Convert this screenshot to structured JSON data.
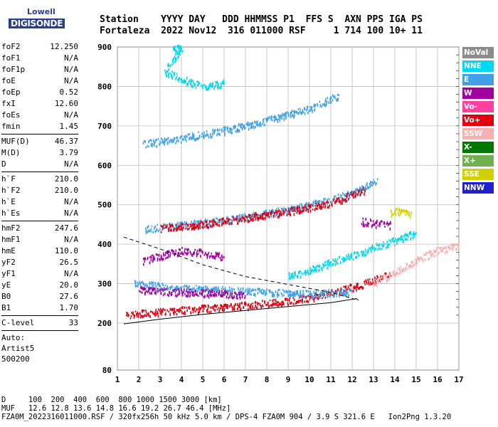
{
  "logo": {
    "line1": "Lowell",
    "line2": "DIGISONDE"
  },
  "header": {
    "labels": "Station    YYYY DAY   DDD HHMMSS P1  FFS S  AXN PPS IGA PS",
    "values": "Fortaleza  2022 Nov12  316 011000 RSF     1 714 100 10+ 11"
  },
  "params": [
    {
      "name": "foF2",
      "value": "12.250"
    },
    {
      "name": "foF1",
      "value": "N/A"
    },
    {
      "name": "foF1p",
      "value": "N/A"
    },
    {
      "name": "foE",
      "value": "N/A"
    },
    {
      "name": "foEp",
      "value": "0.52"
    },
    {
      "name": "fxI",
      "value": "12.60"
    },
    {
      "name": "foEs",
      "value": "N/A"
    },
    {
      "name": "fmin",
      "value": "1.45"
    },
    {
      "sep": true
    },
    {
      "name": "MUF(D)",
      "value": "46.37"
    },
    {
      "name": "M(D)",
      "value": "3.79"
    },
    {
      "name": "D",
      "value": "N/A"
    },
    {
      "sep": true
    },
    {
      "name": "h`F",
      "value": "210.0"
    },
    {
      "name": "h`F2",
      "value": "210.0"
    },
    {
      "name": "h`E",
      "value": "N/A"
    },
    {
      "name": "h`Es",
      "value": "N/A"
    },
    {
      "sep": true
    },
    {
      "name": "hmF2",
      "value": "247.6"
    },
    {
      "name": "hmF1",
      "value": "N/A"
    },
    {
      "name": "hmE",
      "value": "110.0"
    },
    {
      "name": "yF2",
      "value": "26.5"
    },
    {
      "name": "yF1",
      "value": "N/A"
    },
    {
      "name": "yE",
      "value": "20.0"
    },
    {
      "name": "B0",
      "value": "27.6"
    },
    {
      "name": "B1",
      "value": "1.70"
    },
    {
      "sep": true
    },
    {
      "name": "C-level",
      "value": "33"
    },
    {
      "sep": true
    }
  ],
  "auto": {
    "line1": "Auto:",
    "line2": "Artist5",
    "line3": "500200"
  },
  "legend": [
    {
      "label": "NoVal",
      "color": "#8c8c8c"
    },
    {
      "label": "NNE",
      "color": "#00d8f0"
    },
    {
      "label": "E",
      "color": "#40a0e8"
    },
    {
      "label": "W",
      "color": "#a000a0"
    },
    {
      "label": "Vo-",
      "color": "#ff40a0"
    },
    {
      "label": "Vo+",
      "color": "#e00010"
    },
    {
      "label": "SSW",
      "color": "#f8b0b0"
    },
    {
      "label": "X-",
      "color": "#007800"
    },
    {
      "label": "X+",
      "color": "#70b050"
    },
    {
      "label": "SSE",
      "color": "#d0d000"
    },
    {
      "label": "NNW",
      "color": "#2020d0"
    }
  ],
  "bottom": {
    "line1": "D     100  200  400  600  800 1000 1500 3000 [km]",
    "line2": "MUF   12.6 12.8 13.6 14.8 16.6 19.2 26.7 46.4 [MHz]",
    "line3": "FZA0M_2022316011000.RSF / 320fx256h 50 kHz 5.0 km / DPS-4 FZA0M 904 / 3.9 S 321.6 E   Ion2Png 1.3.20"
  },
  "chart_data": {
    "type": "scatter",
    "x_ticks": [
      "1",
      "2",
      "3",
      "4",
      "5",
      "6",
      "7",
      "8",
      "9",
      "10",
      "11",
      "12",
      "13",
      "14",
      "15",
      "16",
      "17"
    ],
    "y_ticks": [
      "80",
      "200",
      "300",
      "400",
      "500",
      "600",
      "700",
      "800",
      "900"
    ],
    "xlim": [
      1,
      17
    ],
    "ylim": [
      80,
      900
    ],
    "grid": true,
    "legend_placement": "right",
    "traces": [
      {
        "color": "#e00010",
        "points": [
          [
            1.4,
            222
          ],
          [
            3,
            230
          ],
          [
            5,
            238
          ],
          [
            7,
            246
          ],
          [
            9,
            258
          ],
          [
            10,
            266
          ],
          [
            11,
            278
          ],
          [
            12,
            292
          ],
          [
            13,
            310
          ],
          [
            13.8,
            330
          ]
        ]
      },
      {
        "color": "#40a0e8",
        "points": [
          [
            1.8,
            300
          ],
          [
            3,
            295
          ],
          [
            4,
            290
          ],
          [
            6,
            285
          ],
          [
            8,
            280
          ],
          [
            10,
            275
          ],
          [
            12,
            282
          ]
        ]
      },
      {
        "color": "#a000a0",
        "points": [
          [
            2,
            285
          ],
          [
            3,
            282
          ],
          [
            4,
            280
          ],
          [
            5,
            278
          ],
          [
            6,
            276
          ],
          [
            7,
            274
          ]
        ]
      },
      {
        "color": "#40a0e8",
        "points": [
          [
            2.3,
            440
          ],
          [
            4,
            450
          ],
          [
            6,
            462
          ],
          [
            8,
            480
          ],
          [
            10,
            500
          ],
          [
            12,
            530
          ],
          [
            13.2,
            565
          ]
        ]
      },
      {
        "color": "#40a0e8",
        "points": [
          [
            2.2,
            655
          ],
          [
            4,
            670
          ],
          [
            6,
            690
          ],
          [
            8,
            715
          ],
          [
            10,
            745
          ],
          [
            11.4,
            780
          ]
        ]
      },
      {
        "color": "#e00010",
        "points": [
          [
            3,
            442
          ],
          [
            5,
            452
          ],
          [
            7,
            468
          ],
          [
            9,
            485
          ],
          [
            11,
            505
          ],
          [
            12.6,
            540
          ]
        ]
      },
      {
        "color": "#a000a0",
        "points": [
          [
            2.2,
            360
          ],
          [
            3,
            372
          ],
          [
            4,
            385
          ],
          [
            5,
            380
          ],
          [
            6,
            370
          ]
        ]
      },
      {
        "color": "#00d8f0",
        "points": [
          [
            9,
            320
          ],
          [
            10,
            335
          ],
          [
            11,
            355
          ],
          [
            12,
            372
          ],
          [
            13,
            392
          ],
          [
            14,
            410
          ],
          [
            15,
            430
          ]
        ]
      },
      {
        "color": "#f8b0b0",
        "points": [
          [
            13,
            300
          ],
          [
            14,
            330
          ],
          [
            15,
            360
          ],
          [
            16,
            385
          ],
          [
            17,
            400
          ]
        ]
      },
      {
        "color": "#d0d000",
        "points": [
          [
            13.8,
            480
          ],
          [
            14.2,
            485
          ],
          [
            14.8,
            478
          ]
        ]
      },
      {
        "color": "#a000a0",
        "points": [
          [
            12.4,
            460
          ],
          [
            13,
            455
          ],
          [
            13.8,
            450
          ]
        ]
      },
      {
        "color": "#00d8f0",
        "points": [
          [
            3.6,
            895
          ],
          [
            4,
            898
          ],
          [
            3.2,
            840
          ],
          [
            4,
            820
          ],
          [
            5,
            800
          ],
          [
            6,
            810
          ]
        ]
      }
    ],
    "fit_curve": [
      [
        1.3,
        198
      ],
      [
        3,
        210
      ],
      [
        5,
        222
      ],
      [
        7,
        232
      ],
      [
        9,
        242
      ],
      [
        11,
        252
      ],
      [
        12.2,
        262
      ],
      [
        12.3,
        258
      ]
    ],
    "dashed_line": [
      [
        1.3,
        418
      ],
      [
        3,
        388
      ],
      [
        5,
        348
      ],
      [
        7,
        318
      ],
      [
        9,
        298
      ],
      [
        11,
        278
      ],
      [
        12.3,
        258
      ]
    ]
  }
}
